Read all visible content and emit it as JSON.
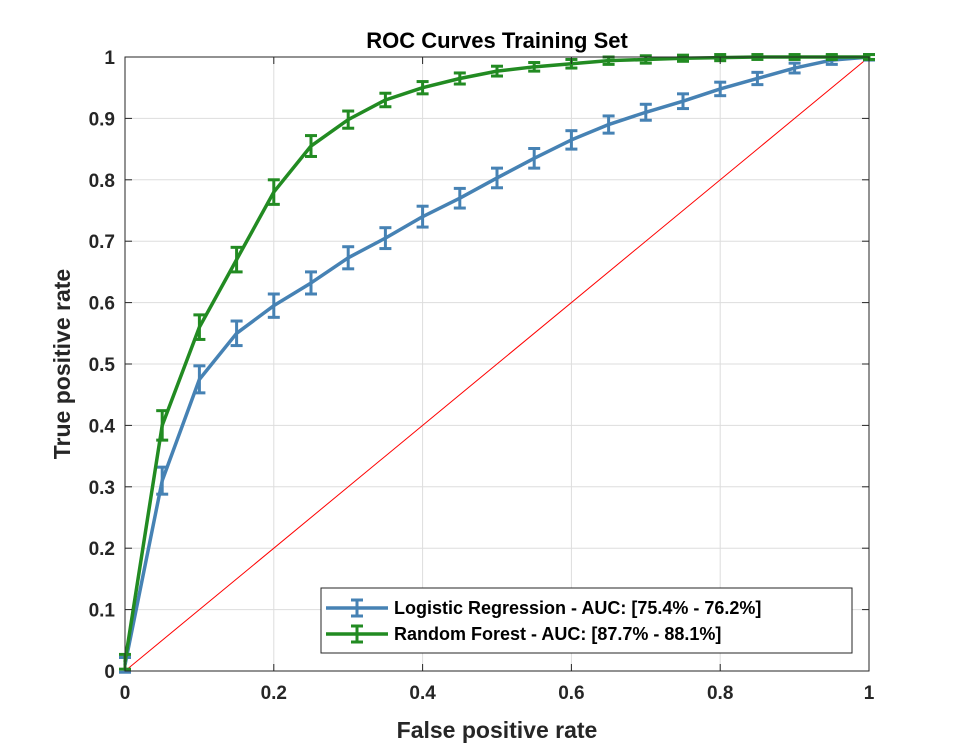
{
  "chart_data": {
    "type": "line",
    "title": "ROC Curves Training Set",
    "xlabel": "False positive rate",
    "ylabel": "True positive rate",
    "xlim": [
      0,
      1
    ],
    "ylim": [
      0,
      1
    ],
    "xticks": [
      0,
      0.2,
      0.4,
      0.6,
      0.8,
      1
    ],
    "xtick_labels": [
      "0",
      "0.2",
      "0.4",
      "0.6",
      "0.8",
      "1"
    ],
    "yticks": [
      0,
      0.1,
      0.2,
      0.3,
      0.4,
      0.5,
      0.6,
      0.7,
      0.8,
      0.9,
      1
    ],
    "ytick_labels": [
      "0",
      "0.1",
      "0.2",
      "0.3",
      "0.4",
      "0.5",
      "0.6",
      "0.7",
      "0.8",
      "0.9",
      "1"
    ],
    "grid": true,
    "legend_position": "bottom-right",
    "x": [
      0,
      0.05,
      0.1,
      0.15,
      0.2,
      0.25,
      0.3,
      0.35,
      0.4,
      0.45,
      0.5,
      0.55,
      0.6,
      0.65,
      0.7,
      0.75,
      0.8,
      0.85,
      0.9,
      0.95,
      1
    ],
    "series": [
      {
        "name": "Logistic Regression - AUC: [75.4% - 76.2%]",
        "color": "#4682b4",
        "values": [
          0.01,
          0.31,
          0.475,
          0.55,
          0.595,
          0.632,
          0.673,
          0.705,
          0.74,
          0.77,
          0.803,
          0.835,
          0.865,
          0.89,
          0.91,
          0.928,
          0.948,
          0.965,
          0.982,
          0.995,
          1.0
        ],
        "error": [
          0.008,
          0.018,
          0.018,
          0.016,
          0.015,
          0.014,
          0.014,
          0.013,
          0.013,
          0.012,
          0.012,
          0.012,
          0.011,
          0.01,
          0.009,
          0.008,
          0.007,
          0.006,
          0.004,
          0.003,
          0.001
        ]
      },
      {
        "name": "Random Forest  - AUC: [87.7% - 88.1%]",
        "color": "#228b22",
        "values": [
          0.015,
          0.4,
          0.56,
          0.67,
          0.78,
          0.855,
          0.898,
          0.93,
          0.95,
          0.965,
          0.977,
          0.984,
          0.989,
          0.994,
          0.996,
          0.998,
          0.999,
          1.0,
          1.0,
          1.0,
          1.0
        ],
        "error": [
          0.008,
          0.02,
          0.016,
          0.016,
          0.016,
          0.013,
          0.01,
          0.007,
          0.006,
          0.005,
          0.004,
          0.003,
          0.003,
          0.002,
          0.002,
          0.001,
          0.001,
          0.0,
          0.0,
          0.0,
          0.0
        ]
      }
    ],
    "reference_line": {
      "x": [
        0,
        1
      ],
      "y": [
        0,
        1
      ],
      "color": "#ff0000"
    }
  }
}
